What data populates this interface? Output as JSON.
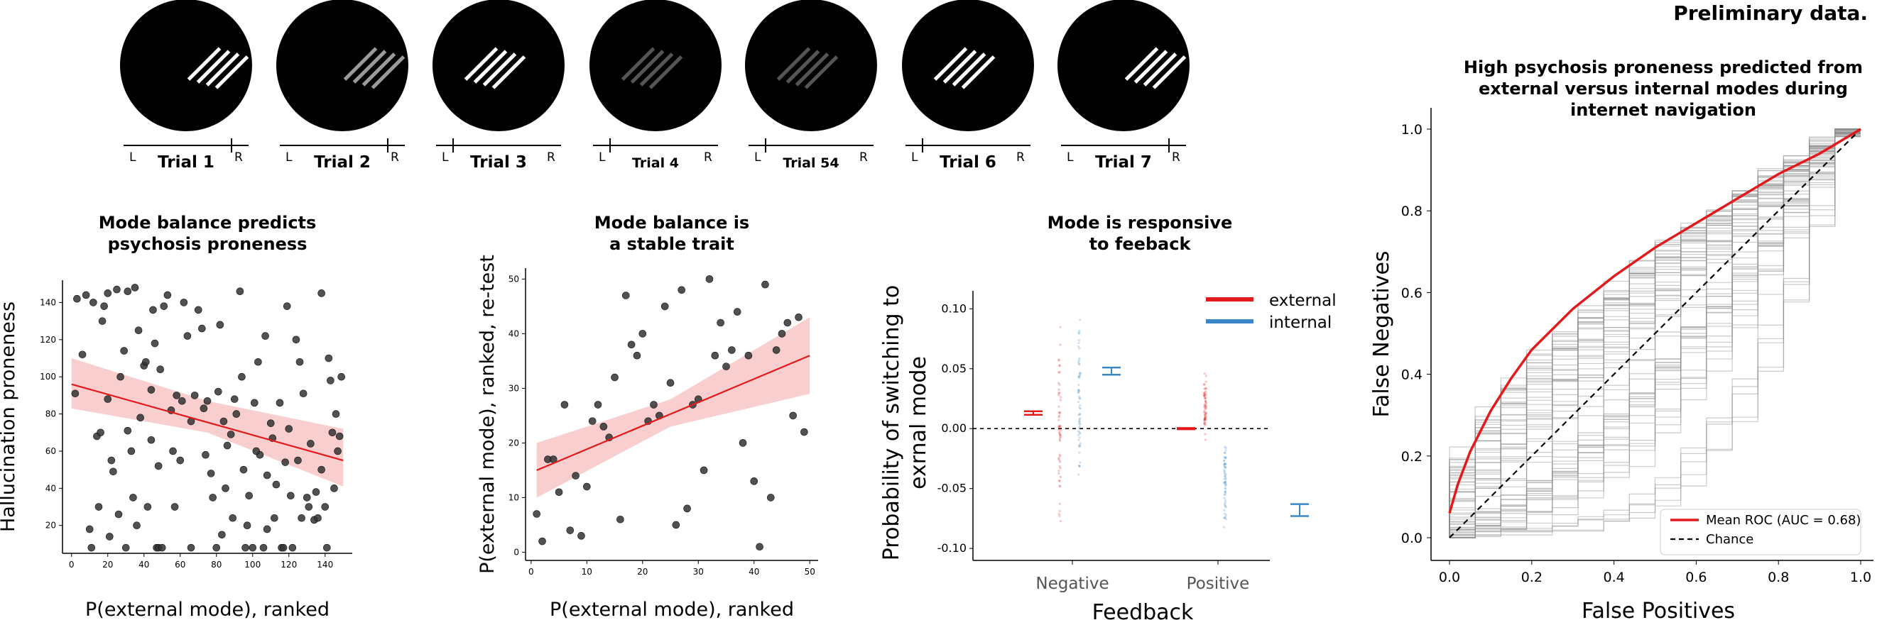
{
  "header": {
    "note": "Preliminary data."
  },
  "trials": [
    {
      "label": "Trial 1",
      "left": "L",
      "right": "R",
      "stripe_color": "#ffffff",
      "marker": "right"
    },
    {
      "label": "Trial 2",
      "left": "L",
      "right": "R",
      "stripe_color": "#9a9a9a",
      "marker": "right"
    },
    {
      "label": "Trial 3",
      "left": "L",
      "right": "R",
      "stripe_color": "#ffffff",
      "marker": "left"
    },
    {
      "label": "Trial 4",
      "left": "L",
      "right": "R",
      "stripe_color": "#555555",
      "marker": "left"
    },
    {
      "label": "Trial 54",
      "left": "L",
      "right": "R",
      "stripe_color": "#555555",
      "marker": "left"
    },
    {
      "label": "Trial 6",
      "left": "L",
      "right": "R",
      "stripe_color": "#ffffff",
      "marker": "left"
    },
    {
      "label": "Trial 7",
      "left": "L",
      "right": "R",
      "stripe_color": "#ffffff",
      "marker": "right"
    }
  ],
  "chart_data": [
    {
      "type": "scatter",
      "title": "Mode balance predicts\npsychosis proneness",
      "xlabel": "P(external mode), ranked",
      "ylabel": "Hallucination proneness",
      "xlim": [
        -5,
        155
      ],
      "ylim": [
        5,
        152
      ],
      "xticks": [
        0,
        20,
        40,
        60,
        80,
        100,
        120,
        140
      ],
      "yticks": [
        20,
        40,
        60,
        80,
        100,
        120,
        140
      ],
      "point_color": "#333333",
      "fit": {
        "x": [
          0,
          150
        ],
        "y": [
          96,
          55
        ],
        "color": "#e31a1c",
        "band_color": "#f4a6a6",
        "band_upper": [
          [
            0,
            110
          ],
          [
            75,
            87
          ],
          [
            150,
            72
          ]
        ],
        "band_lower": [
          [
            0,
            83
          ],
          [
            75,
            70
          ],
          [
            150,
            41
          ]
        ]
      },
      "points": [
        [
          2,
          91
        ],
        [
          3,
          142
        ],
        [
          8,
          144
        ],
        [
          10,
          18
        ],
        [
          11,
          8
        ],
        [
          12,
          140
        ],
        [
          14,
          68
        ],
        [
          16,
          70
        ],
        [
          17,
          130
        ],
        [
          18,
          138
        ],
        [
          20,
          145
        ],
        [
          20,
          88
        ],
        [
          22,
          55
        ],
        [
          23,
          49
        ],
        [
          25,
          147
        ],
        [
          26,
          26
        ],
        [
          27,
          100
        ],
        [
          29,
          114
        ],
        [
          30,
          8
        ],
        [
          31,
          146
        ],
        [
          31,
          71
        ],
        [
          33,
          60
        ],
        [
          35,
          148
        ],
        [
          37,
          125
        ],
        [
          38,
          78
        ],
        [
          40,
          106
        ],
        [
          41,
          108
        ],
        [
          42,
          30
        ],
        [
          44,
          93
        ],
        [
          45,
          136
        ],
        [
          46,
          118
        ],
        [
          47,
          8
        ],
        [
          48,
          8
        ],
        [
          48,
          52
        ],
        [
          49,
          104
        ],
        [
          50,
          8
        ],
        [
          51,
          138
        ],
        [
          53,
          144
        ],
        [
          55,
          82
        ],
        [
          56,
          60
        ],
        [
          58,
          90
        ],
        [
          60,
          55
        ],
        [
          61,
          87
        ],
        [
          62,
          140
        ],
        [
          64,
          122
        ],
        [
          66,
          76
        ],
        [
          68,
          90
        ],
        [
          70,
          136
        ],
        [
          72,
          126
        ],
        [
          74,
          58
        ],
        [
          75,
          87
        ],
        [
          77,
          48
        ],
        [
          78,
          35
        ],
        [
          80,
          8
        ],
        [
          81,
          92
        ],
        [
          82,
          128
        ],
        [
          84,
          76
        ],
        [
          85,
          40
        ],
        [
          86,
          63
        ],
        [
          88,
          69
        ],
        [
          90,
          88
        ],
        [
          91,
          80
        ],
        [
          93,
          146
        ],
        [
          95,
          50
        ],
        [
          96,
          8
        ],
        [
          98,
          36
        ],
        [
          100,
          8
        ],
        [
          101,
          86
        ],
        [
          103,
          108
        ],
        [
          104,
          58
        ],
        [
          106,
          8
        ],
        [
          107,
          122
        ],
        [
          108,
          47
        ],
        [
          110,
          75
        ],
        [
          111,
          67
        ],
        [
          113,
          42
        ],
        [
          115,
          86
        ],
        [
          116,
          8
        ],
        [
          117,
          8
        ],
        [
          118,
          54
        ],
        [
          119,
          138
        ],
        [
          120,
          72
        ],
        [
          122,
          8
        ],
        [
          124,
          120
        ],
        [
          125,
          55
        ],
        [
          126,
          108
        ],
        [
          128,
          91
        ],
        [
          130,
          35
        ],
        [
          131,
          30
        ],
        [
          132,
          64
        ],
        [
          134,
          23
        ],
        [
          136,
          24
        ],
        [
          138,
          50
        ],
        [
          138,
          145
        ],
        [
          140,
          30
        ],
        [
          141,
          8
        ],
        [
          142,
          110
        ],
        [
          143,
          98
        ],
        [
          144,
          70
        ],
        [
          145,
          40
        ],
        [
          146,
          80
        ],
        [
          147,
          60
        ],
        [
          149,
          100
        ],
        [
          6,
          112
        ],
        [
          15,
          30
        ],
        [
          36,
          20
        ],
        [
          57,
          30
        ],
        [
          83,
          15
        ],
        [
          97,
          20
        ],
        [
          112,
          24
        ],
        [
          135,
          38
        ],
        [
          21,
          14
        ],
        [
          44,
          66
        ],
        [
          66,
          8
        ],
        [
          89,
          24
        ],
        [
          108,
          18
        ],
        [
          127,
          24
        ],
        [
          148,
          68
        ],
        [
          34,
          35
        ],
        [
          73,
          83
        ],
        [
          102,
          60
        ],
        [
          121,
          36
        ],
        [
          94,
          100
        ]
      ]
    },
    {
      "type": "scatter",
      "title": "Mode balance is\na stable trait",
      "xlabel": "P(external mode), ranked",
      "ylabel": "P(external mode), ranked, re-test",
      "xlim": [
        -1,
        51.5
      ],
      "ylim": [
        -1.5,
        52
      ],
      "xticks": [
        0,
        10,
        20,
        30,
        40,
        50
      ],
      "yticks": [
        0,
        10,
        20,
        30,
        40,
        50
      ],
      "point_color": "#333333",
      "fit": {
        "x": [
          1,
          50
        ],
        "y": [
          15,
          36
        ],
        "color": "#e31a1c",
        "band_color": "#f4a6a6",
        "band_upper": [
          [
            1,
            20
          ],
          [
            25,
            28
          ],
          [
            50,
            43
          ]
        ],
        "band_lower": [
          [
            1,
            10
          ],
          [
            25,
            23
          ],
          [
            50,
            29
          ]
        ]
      },
      "points": [
        [
          1,
          7
        ],
        [
          2,
          2
        ],
        [
          3,
          17
        ],
        [
          4,
          17
        ],
        [
          5,
          11
        ],
        [
          6,
          27
        ],
        [
          7,
          4
        ],
        [
          8,
          14
        ],
        [
          9,
          3
        ],
        [
          10,
          12
        ],
        [
          11,
          24
        ],
        [
          12,
          27
        ],
        [
          13,
          23
        ],
        [
          14,
          21
        ],
        [
          15,
          32
        ],
        [
          16,
          6
        ],
        [
          17,
          47
        ],
        [
          18,
          38
        ],
        [
          19,
          36
        ],
        [
          20,
          40
        ],
        [
          21,
          24
        ],
        [
          22,
          27
        ],
        [
          23,
          25
        ],
        [
          24,
          45
        ],
        [
          25,
          31
        ],
        [
          26,
          5
        ],
        [
          27,
          48
        ],
        [
          28,
          8
        ],
        [
          29,
          27
        ],
        [
          30,
          28
        ],
        [
          31,
          15
        ],
        [
          32,
          50
        ],
        [
          33,
          36
        ],
        [
          34,
          42
        ],
        [
          35,
          34
        ],
        [
          36,
          37
        ],
        [
          37,
          44
        ],
        [
          38,
          20
        ],
        [
          39,
          36
        ],
        [
          40,
          13
        ],
        [
          41,
          1
        ],
        [
          42,
          49
        ],
        [
          43,
          10
        ],
        [
          44,
          37
        ],
        [
          45,
          40
        ],
        [
          46,
          42
        ],
        [
          47,
          25
        ],
        [
          48,
          43
        ],
        [
          49,
          22
        ]
      ]
    },
    {
      "type": "scatter",
      "title": "Mode is responsive\nto feeback",
      "xlabel": "Feedback",
      "ylabel": "Probability of switching to\nexrnal mode",
      "categories": [
        "Negative",
        "Positive"
      ],
      "ylim": [
        -0.11,
        0.115
      ],
      "yticks": [
        -0.1,
        -0.05,
        0.0,
        0.05,
        0.1
      ],
      "series": [
        {
          "name": "external",
          "color": "#e31a1c",
          "means": [
            0.013,
            0.0
          ],
          "errors": [
            0.0015,
            0.0005
          ]
        },
        {
          "name": "internal",
          "color": "#3b86c8",
          "means": [
            0.048,
            -0.068
          ],
          "errors": [
            0.003,
            0.005
          ]
        }
      ],
      "spread": {
        "external": [
          [
            -0.09,
            0.095
          ],
          [
            -0.01,
            0.05
          ]
        ],
        "internal": [
          [
            -0.06,
            0.1
          ],
          [
            -0.09,
            0.0
          ]
        ]
      },
      "reference_line": 0.0
    },
    {
      "type": "line",
      "title": "High psychosis proneness predicted from\nexternal versus internal modes during\ninternet navigation",
      "xlabel": "False Positives",
      "ylabel": "False Negatives",
      "xlim": [
        -0.05,
        1.05
      ],
      "ylim": [
        -0.05,
        1.05
      ],
      "xticks": [
        0.0,
        0.2,
        0.4,
        0.6,
        0.8,
        1.0
      ],
      "yticks": [
        0.0,
        0.2,
        0.4,
        0.6,
        0.8,
        1.0
      ],
      "mean_roc": {
        "name": "Mean ROC (AUC = 0.68)",
        "color": "#e31a1c",
        "points": [
          [
            0,
            0.06
          ],
          [
            0.02,
            0.13
          ],
          [
            0.05,
            0.21
          ],
          [
            0.1,
            0.31
          ],
          [
            0.15,
            0.39
          ],
          [
            0.2,
            0.46
          ],
          [
            0.3,
            0.56
          ],
          [
            0.4,
            0.64
          ],
          [
            0.5,
            0.71
          ],
          [
            0.6,
            0.77
          ],
          [
            0.7,
            0.83
          ],
          [
            0.8,
            0.89
          ],
          [
            0.9,
            0.94
          ],
          [
            1.0,
            1.0
          ]
        ]
      },
      "chance": {
        "name": "Chance",
        "color": "#000000",
        "points": [
          [
            0,
            0
          ],
          [
            1,
            1
          ]
        ]
      },
      "fold_curves": 60,
      "legend": "bottom-right"
    }
  ]
}
